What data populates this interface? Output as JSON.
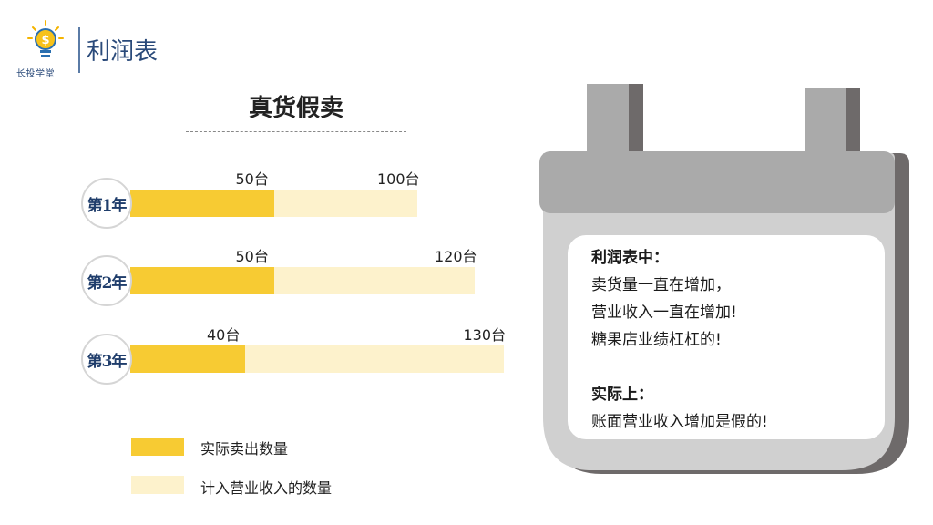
{
  "header": {
    "logo_text": "长投学堂",
    "title": "利润表"
  },
  "chart_title": "真货假卖",
  "chart_data": {
    "type": "bar",
    "orientation": "horizontal",
    "categories": [
      "第1年",
      "第2年",
      "第3年"
    ],
    "series": [
      {
        "name": "实际卖出数量",
        "values": [
          50,
          50,
          40
        ],
        "labels": [
          "50台",
          "50台",
          "40台"
        ],
        "color": "#f7cb33"
      },
      {
        "name": "计入营业收入的数量",
        "values": [
          100,
          120,
          130
        ],
        "labels": [
          "100台",
          "120台",
          "130台"
        ],
        "color": "#fdf2cc"
      }
    ]
  },
  "legend": {
    "actual": "实际卖出数量",
    "recorded": "计入营业收入的数量"
  },
  "note": {
    "heading1": "利润表中：",
    "line1": "卖货量一直在增加，",
    "line2": "营业收入一直在增加!",
    "line3": "糖果店业绩杠杠的!",
    "heading2": "实际上：",
    "line4": "账面营业收入增加是假的!"
  },
  "colors": {
    "actual_bar": "#f7cb33",
    "recorded_bar": "#fdf2cc",
    "board_body": "#d0d0d0",
    "board_shadow": "#6e6a6a",
    "board_top": "#aaaaaa",
    "title_blue": "#2a4a7a"
  }
}
